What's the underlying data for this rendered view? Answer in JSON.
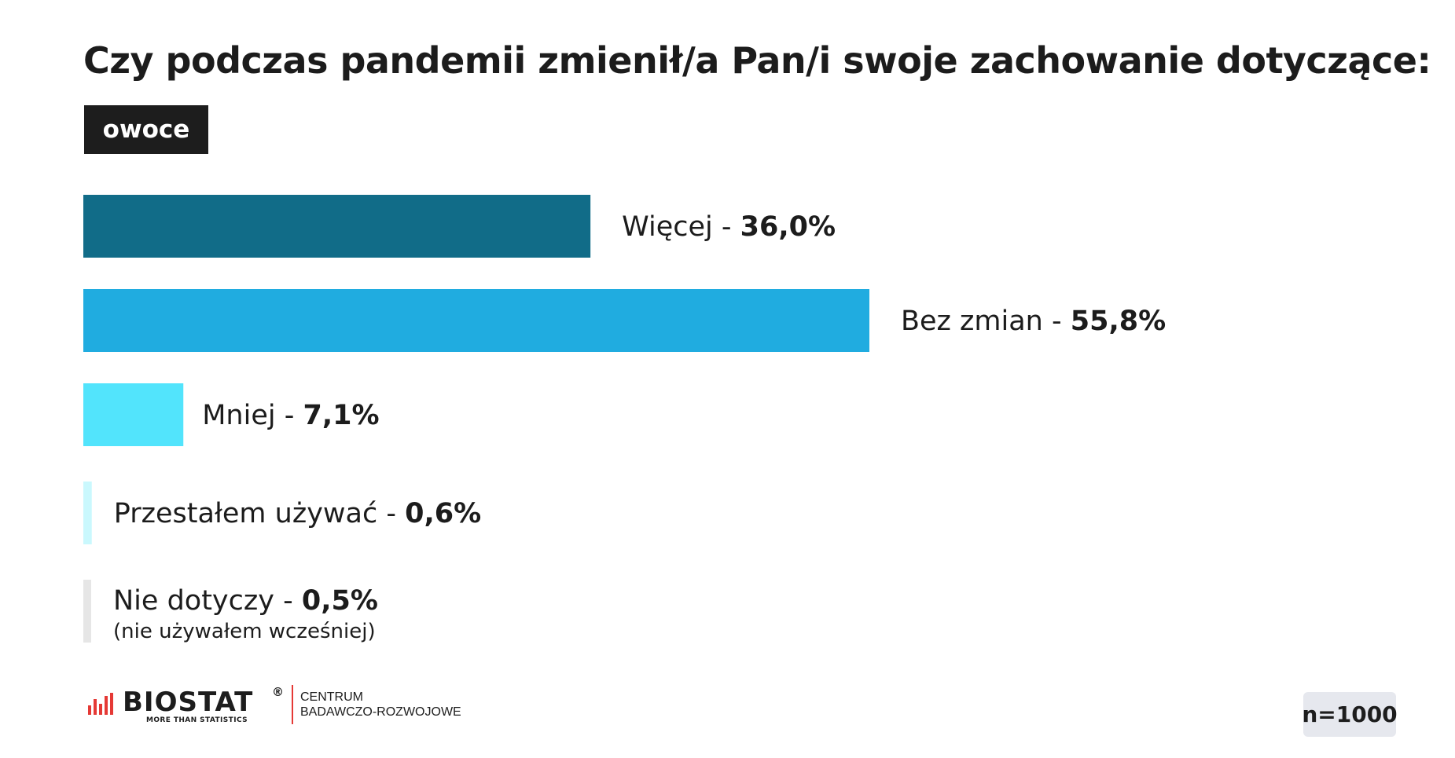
{
  "title": "Czy podczas pandemii zmienił/a Pan/i swoje zachowanie dotyczące:",
  "subtitle_tag": "owoce",
  "chart_data": {
    "type": "bar",
    "orientation": "horizontal",
    "categories": [
      "Więcej",
      "Bez zmian",
      "Mniej",
      "Przestałem używać",
      "Nie dotyczy"
    ],
    "values": [
      36.0,
      55.8,
      7.1,
      0.6,
      0.5
    ],
    "value_labels": [
      "36,0%",
      "55,8%",
      "7,1%",
      "0,6%",
      "0,5%"
    ],
    "notes": [
      "",
      "",
      "",
      "",
      "(nie używałem wcześniej)"
    ],
    "colors": [
      "#116c88",
      "#20ace0",
      "#52e4fc",
      "#caf8fd",
      "#e6e6e6"
    ],
    "separator": " - ",
    "xlim": [
      0,
      55.8
    ],
    "grid": false
  },
  "logo": {
    "name": "BIOSTAT",
    "registered": "®",
    "tagline": "MORE THAN STATISTICS",
    "division_line1": "CENTRUM",
    "division_line2": "BADAWCZO-ROZWOJOWE"
  },
  "sample_size": "n=1000"
}
